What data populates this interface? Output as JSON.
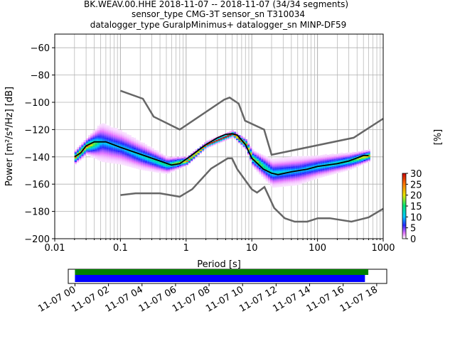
{
  "title": {
    "line1": "BK.WEAV.00.HHE   2018-11-07 -- 2018-11-07  (34/34 segments)",
    "line2": "sensor_type CMG-3T sensor_sn T310034",
    "line3": "datalogger_type GuralpMinimus+ datalogger_sn MINP-DF59"
  },
  "colorbar": {
    "label": "[%]",
    "ticks": [
      "0",
      "5",
      "10",
      "15",
      "20",
      "25",
      "30"
    ],
    "range": [
      0,
      30
    ]
  },
  "timeline": {
    "tick_labels": [
      "11-07 00",
      "11-07 02",
      "11-07 04",
      "11-07 06",
      "11-07 08",
      "11-07 10",
      "11-07 12",
      "11-07 14",
      "11-07 16",
      "11-07 18"
    ],
    "xlim_hours": [
      -0.4,
      18.6
    ],
    "bars": [
      {
        "name": "coverage",
        "start_h": 0.0,
        "end_h": 17.5,
        "color": "#008000"
      },
      {
        "name": "data",
        "start_h": 0.0,
        "end_h": 17.3,
        "color": "#0000ff"
      }
    ]
  },
  "chart_data": {
    "type": "heatmap",
    "xscale": "log",
    "xlabel": "Period [s]",
    "ylabel": "Power [m²/s⁴/Hz] [dB]",
    "xlim": [
      0.01,
      1000
    ],
    "ylim": [
      -200,
      -50
    ],
    "xticks": [
      "0.01",
      "0.1",
      "1",
      "10",
      "100",
      "1000"
    ],
    "yticks": [
      "−200",
      "−180",
      "−160",
      "−140",
      "−120",
      "−100",
      "−80",
      "−60"
    ],
    "grid": true,
    "noise_models": {
      "nhnm": {
        "x": [
          0.1,
          0.22,
          0.32,
          0.8,
          3.8,
          4.6,
          6.3,
          7.9,
          15.4,
          20,
          354.8,
          1000
        ],
        "y": [
          -91.5,
          -97.4,
          -110.5,
          -120,
          -98,
          -96.5,
          -101,
          -113.5,
          -120,
          -138.5,
          -126,
          -112
        ]
      },
      "nlnm": {
        "x": [
          0.1,
          0.17,
          0.4,
          0.8,
          1.24,
          2.4,
          4.3,
          5.0,
          6.0,
          10,
          12,
          15.6,
          21.9,
          31.6,
          45,
          70,
          101,
          154,
          328,
          600,
          1000
        ],
        "y": [
          -168,
          -166.7,
          -166.7,
          -169.2,
          -163.7,
          -148.6,
          -141.1,
          -141.1,
          -149,
          -163.8,
          -166.2,
          -162.1,
          -177.5,
          -185,
          -187.5,
          -187.5,
          -185,
          -185,
          -187.5,
          -184.4,
          -178
        ]
      }
    },
    "median_curve": {
      "x": [
        0.02,
        0.025,
        0.03,
        0.04,
        0.06,
        0.1,
        0.2,
        0.4,
        0.6,
        0.8,
        1.2,
        2,
        3,
        4,
        5,
        6,
        8,
        10,
        15,
        20,
        25,
        40,
        70,
        100,
        200,
        300,
        500,
        600
      ],
      "y": [
        -140,
        -137,
        -132,
        -129,
        -129,
        -133,
        -138,
        -143,
        -146,
        -145,
        -139,
        -131,
        -126,
        -123.5,
        -123,
        -124,
        -131,
        -141,
        -149,
        -152,
        -153,
        -151,
        -149,
        -147,
        -145,
        -143,
        -139,
        -139
      ]
    },
    "pdf_density_percent": {
      "x": [
        0.02,
        0.03,
        0.05,
        0.1,
        0.2,
        0.5,
        1,
        2,
        5,
        8,
        10,
        20,
        50,
        100,
        300,
        600
      ],
      "y_center": [
        -140,
        -132,
        -129,
        -133,
        -139,
        -146,
        -143,
        -131,
        -123,
        -131,
        -141,
        -152,
        -150,
        -147,
        -143,
        -139
      ],
      "spread_db": [
        5,
        6,
        14,
        12,
        10,
        6,
        3,
        2,
        2,
        4,
        6,
        10,
        10,
        8,
        6,
        4
      ],
      "peak_percent": [
        25,
        25,
        10,
        10,
        12,
        15,
        25,
        28,
        30,
        25,
        20,
        12,
        10,
        12,
        15,
        25
      ]
    }
  }
}
